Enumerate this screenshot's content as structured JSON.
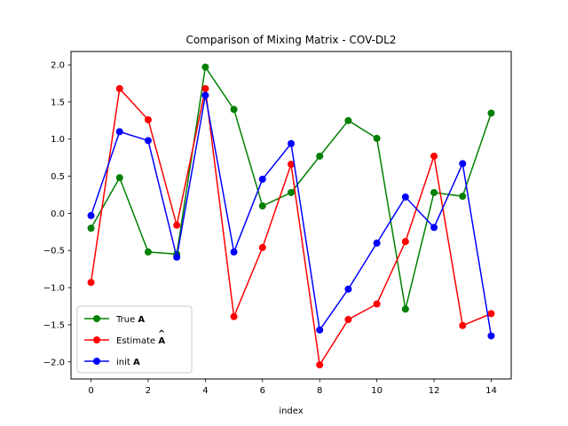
{
  "chart_data": {
    "type": "line",
    "title": "Comparison of Mixing Matrix - COV-DL2",
    "xlabel": "index",
    "ylabel": "",
    "xlim": [
      -0.7,
      14.7
    ],
    "ylim": [
      -2.23,
      2.18
    ],
    "xticks": [
      0,
      2,
      4,
      6,
      8,
      10,
      12,
      14
    ],
    "xtick_labels": [
      "0",
      "2",
      "4",
      "6",
      "8",
      "10",
      "12",
      "14"
    ],
    "yticks": [
      -2.0,
      -1.5,
      -1.0,
      -0.5,
      0.0,
      0.5,
      1.0,
      1.5,
      2.0
    ],
    "ytick_labels": [
      "−2.0",
      "−1.5",
      "−1.0",
      "−0.5",
      "0.0",
      "0.5",
      "1.0",
      "1.5",
      "2.0"
    ],
    "grid": false,
    "legend_position": "lower-left",
    "x": [
      0,
      1,
      2,
      3,
      4,
      5,
      6,
      7,
      8,
      9,
      10,
      11,
      12,
      13,
      14
    ],
    "series": [
      {
        "name_plain": "True ",
        "name_bold": "A",
        "name_hat": false,
        "color": "#008000",
        "values": [
          -0.2,
          0.48,
          -0.52,
          -0.55,
          1.97,
          1.4,
          0.1,
          0.28,
          0.77,
          1.25,
          1.01,
          -1.29,
          0.28,
          0.23,
          1.35
        ]
      },
      {
        "name_plain": "Estimate ",
        "name_bold": "A",
        "name_hat": true,
        "color": "#ff0000",
        "values": [
          -0.93,
          1.68,
          1.26,
          -0.16,
          1.68,
          -1.39,
          -0.46,
          0.66,
          -2.04,
          -1.43,
          -1.22,
          -0.38,
          0.77,
          -1.51,
          -1.35
        ]
      },
      {
        "name_plain": "init ",
        "name_bold": "A",
        "name_hat": false,
        "color": "#0000ff",
        "values": [
          -0.03,
          1.1,
          0.98,
          -0.59,
          1.59,
          -0.52,
          0.46,
          0.94,
          -1.57,
          -1.02,
          -0.4,
          0.22,
          -0.19,
          0.67,
          -1.65
        ]
      }
    ]
  }
}
